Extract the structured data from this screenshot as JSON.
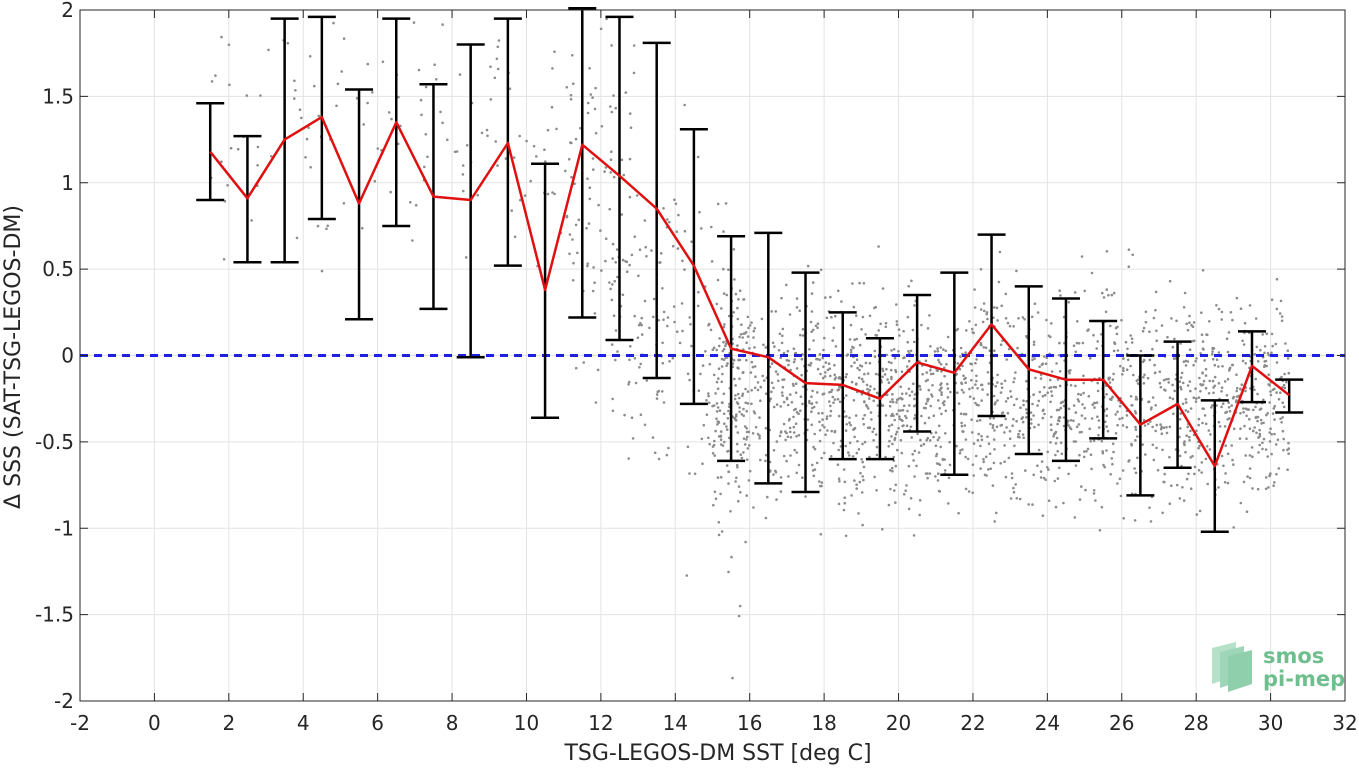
{
  "chart_data": {
    "type": "line",
    "xlabel": "TSG-LEGOS-DM SST [deg C]",
    "ylabel": "Δ SSS (SAT-TSG-LEGOS-DM)",
    "xlim": [
      -2,
      32
    ],
    "ylim": [
      -2,
      2
    ],
    "xticks": [
      -2,
      0,
      2,
      4,
      6,
      8,
      10,
      12,
      14,
      16,
      18,
      20,
      22,
      24,
      26,
      28,
      30,
      32
    ],
    "xtick_labels": [
      "-2",
      "0",
      "2",
      "4",
      "6",
      "8",
      "10",
      "12",
      "14",
      "16",
      "18",
      "20",
      "22",
      "24",
      "26",
      "28",
      "30",
      "32"
    ],
    "yticks": [
      -2,
      -1.5,
      -1,
      -0.5,
      0,
      0.5,
      1,
      1.5,
      2
    ],
    "ytick_labels": [
      "-2",
      "-1.5",
      "-1",
      "-0.5",
      "0",
      "0.5",
      "1",
      "1.5",
      "2"
    ],
    "grid": true,
    "reference_line": {
      "y": 0,
      "style": "dashed",
      "color": "#1f1fe0"
    },
    "mean_line": {
      "color": "#e01010",
      "x": [
        1.5,
        2.5,
        3.5,
        4.5,
        5.5,
        6.5,
        7.5,
        8.5,
        9.5,
        10.5,
        11.5,
        12.5,
        13.5,
        14.5,
        15.5,
        16.5,
        17.5,
        18.5,
        19.5,
        20.5,
        21.5,
        22.5,
        23.5,
        24.5,
        25.5,
        26.5,
        27.5,
        28.5,
        29.5,
        30.5
      ],
      "y": [
        1.18,
        0.91,
        1.25,
        1.38,
        0.88,
        1.35,
        0.92,
        0.9,
        1.23,
        0.38,
        1.22,
        1.04,
        0.85,
        0.52,
        0.04,
        -0.01,
        -0.16,
        -0.17,
        -0.25,
        -0.04,
        -0.1,
        0.18,
        -0.08,
        -0.14,
        -0.14,
        -0.4,
        -0.28,
        -0.64,
        -0.06,
        -0.23
      ]
    },
    "error_bars": {
      "color": "#000000",
      "upper": [
        1.46,
        1.27,
        1.95,
        1.96,
        1.54,
        1.95,
        1.57,
        1.8,
        1.95,
        1.11,
        2.01,
        1.96,
        1.81,
        1.31,
        0.69,
        0.71,
        0.48,
        0.25,
        0.1,
        0.35,
        0.48,
        0.7,
        0.4,
        0.33,
        0.2,
        0.0,
        0.08,
        -0.26,
        0.14,
        -0.14
      ],
      "lower": [
        0.9,
        0.54,
        0.54,
        0.79,
        0.21,
        0.75,
        0.27,
        -0.01,
        0.52,
        -0.36,
        0.22,
        0.09,
        -0.13,
        -0.28,
        -0.61,
        -0.74,
        -0.79,
        -0.6,
        -0.6,
        -0.44,
        -0.69,
        -0.35,
        -0.57,
        -0.61,
        -0.48,
        -0.81,
        -0.65,
        -1.02,
        -0.27,
        -0.33
      ]
    },
    "scatter": {
      "color": "#8c8c8c",
      "description_clusters": [
        {
          "x_range": [
            1.5,
            13
          ],
          "y_center": 1.3,
          "y_spread": 0.35
        },
        {
          "x_range": [
            11,
            16
          ],
          "y_center": 0.4,
          "y_spread": 0.6
        },
        {
          "x_range": [
            15,
            30.5
          ],
          "y_center": -0.25,
          "y_spread": 0.3
        }
      ]
    }
  },
  "logo": {
    "line1": "smos",
    "line2": "pi-mep"
  }
}
